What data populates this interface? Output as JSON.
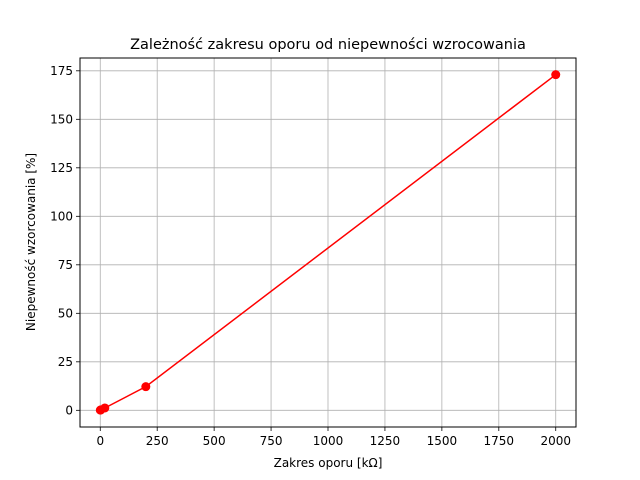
{
  "chart_data": {
    "type": "line",
    "title": "Zależność zakresu oporu od niepewności wzrocowania",
    "xlabel": "Zakres oporu [kΩ]",
    "ylabel": "Niepewność wzorcowania [%]",
    "xlim": [
      -89,
      2089
    ],
    "ylim": [
      -8.6,
      181.6
    ],
    "xticks": [
      0,
      250,
      500,
      750,
      1000,
      1250,
      1500,
      1750,
      2000
    ],
    "yticks": [
      0,
      25,
      50,
      75,
      100,
      125,
      150,
      175
    ],
    "grid": true,
    "series": [
      {
        "color": "#ff0000",
        "marker": "circle",
        "x": [
          0.2,
          2,
          20,
          200,
          2000
        ],
        "y": [
          0.1,
          0.2,
          1.2,
          12.2,
          173
        ]
      }
    ]
  }
}
